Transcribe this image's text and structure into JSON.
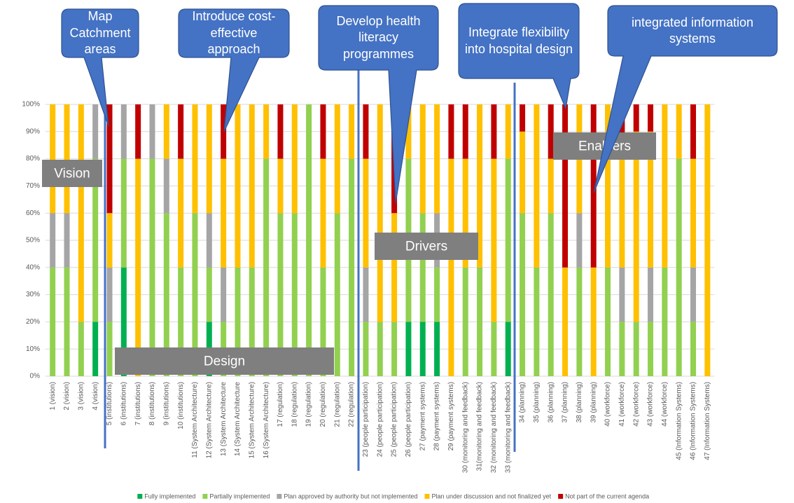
{
  "chart_data": {
    "type": "bar",
    "stacked": true,
    "categories": [
      "1 (vision)",
      "2 (vision)",
      "3 (vision)",
      "4 (vision)",
      "5 (institutions)",
      "6 (institutions)",
      "7 (institutions)",
      "8 (institutions)",
      "9 (institutions)",
      "10 (institutions)",
      "11 (System Architecture)",
      "12 (System Architecture)",
      "13 (System Architecture",
      "14 (System Architecture",
      "15 (System Architecture)",
      "16 (System Architecture)",
      "17 (regulation)",
      "18 (regulation)",
      "19 (regulation)",
      "20 (regulation)",
      "21 (regulation)",
      "22 (regulation)",
      "23 (people participation)",
      "24 (people participation)",
      "25 (people participation)",
      "26 (people participation)",
      "27 (payment systems)",
      "28 (payment systems)",
      "29 (payment systems)",
      "30 (monitoring and feedback)",
      "31(monitoring and feedback)",
      "32 (monitoring and feedback)",
      "33 (monitoring and feedback)",
      "34 (planning)",
      "35 (planning)",
      "36 (planning)",
      "37 (planning)",
      "38 (planning)",
      "39 (planning)",
      "40 (workforce)",
      "41 (workforce)",
      "42 (workforce)",
      "43 (workforce)",
      "44 (workforce)",
      "45 (Information Systems)",
      "46 (Information Systems)",
      "47 (Information Systems)"
    ],
    "series": [
      {
        "name": "Fully implemented",
        "color": "#00b050",
        "values": [
          0,
          0,
          0,
          20,
          0,
          40,
          0,
          0,
          0,
          0,
          0,
          20,
          0,
          0,
          0,
          0,
          0,
          0,
          0,
          0,
          0,
          0,
          0,
          0,
          0,
          20,
          20,
          20,
          0,
          0,
          0,
          0,
          20,
          0,
          0,
          0,
          0,
          0,
          0,
          0,
          0,
          0,
          0,
          0,
          0,
          0,
          0
        ]
      },
      {
        "name": "Partially implemented",
        "color": "#92d050",
        "values": [
          40,
          40,
          20,
          60,
          20,
          40,
          0,
          80,
          60,
          40,
          60,
          20,
          20,
          40,
          40,
          80,
          60,
          60,
          100,
          40,
          60,
          80,
          20,
          20,
          20,
          60,
          40,
          20,
          0,
          40,
          40,
          20,
          60,
          60,
          40,
          60,
          0,
          40,
          0,
          40,
          20,
          20,
          20,
          40,
          80,
          20,
          0
        ]
      },
      {
        "name": "Plan approved by authority but not implemented",
        "color": "#a5a5a5",
        "values": [
          20,
          20,
          0,
          20,
          20,
          20,
          0,
          20,
          20,
          0,
          0,
          20,
          20,
          0,
          0,
          0,
          0,
          0,
          0,
          0,
          0,
          0,
          20,
          0,
          0,
          0,
          0,
          20,
          0,
          0,
          0,
          0,
          0,
          0,
          0,
          0,
          0,
          20,
          0,
          0,
          20,
          0,
          20,
          0,
          0,
          20,
          0
        ]
      },
      {
        "name": "Plan under discussion and not finalized yet",
        "color": "#ffc000",
        "values": [
          40,
          40,
          80,
          0,
          20,
          0,
          80,
          0,
          20,
          40,
          40,
          40,
          40,
          60,
          60,
          20,
          20,
          40,
          0,
          40,
          40,
          20,
          40,
          80,
          40,
          20,
          40,
          40,
          80,
          40,
          60,
          60,
          20,
          30,
          60,
          20,
          40,
          40,
          40,
          60,
          40,
          70,
          50,
          60,
          20,
          40,
          100
        ]
      },
      {
        "name": "Not part of the current agenda",
        "color": "#c00000",
        "values": [
          0,
          0,
          0,
          0,
          40,
          0,
          20,
          0,
          0,
          20,
          0,
          0,
          20,
          0,
          0,
          0,
          20,
          0,
          0,
          20,
          0,
          0,
          20,
          0,
          40,
          0,
          0,
          0,
          20,
          20,
          0,
          20,
          0,
          10,
          0,
          20,
          60,
          0,
          60,
          0,
          20,
          10,
          10,
          0,
          0,
          20,
          0
        ]
      }
    ],
    "ylim": [
      0,
      100
    ],
    "yticks": [
      {
        "value": 0,
        "label": "0%"
      },
      {
        "value": 10,
        "label": "10%"
      },
      {
        "value": 20,
        "label": "20%"
      },
      {
        "value": 30,
        "label": "30%"
      },
      {
        "value": 40,
        "label": "40%"
      },
      {
        "value": 50,
        "label": "50%"
      },
      {
        "value": 60,
        "label": "60%"
      },
      {
        "value": 70,
        "label": "70%"
      },
      {
        "value": 80,
        "label": "80%"
      },
      {
        "value": 90,
        "label": "90%"
      },
      {
        "value": 100,
        "label": "100%"
      }
    ],
    "grid": true,
    "legend": "bottom",
    "regions": [
      "Vision",
      "Design",
      "Drivers",
      "Enablers"
    ],
    "callouts": [
      "Map Catchment areas",
      "Introduce cost-effective approach",
      "Develop health literacy programmes",
      "Integrate flexibility into hospital design",
      "integrated information systems"
    ]
  }
}
